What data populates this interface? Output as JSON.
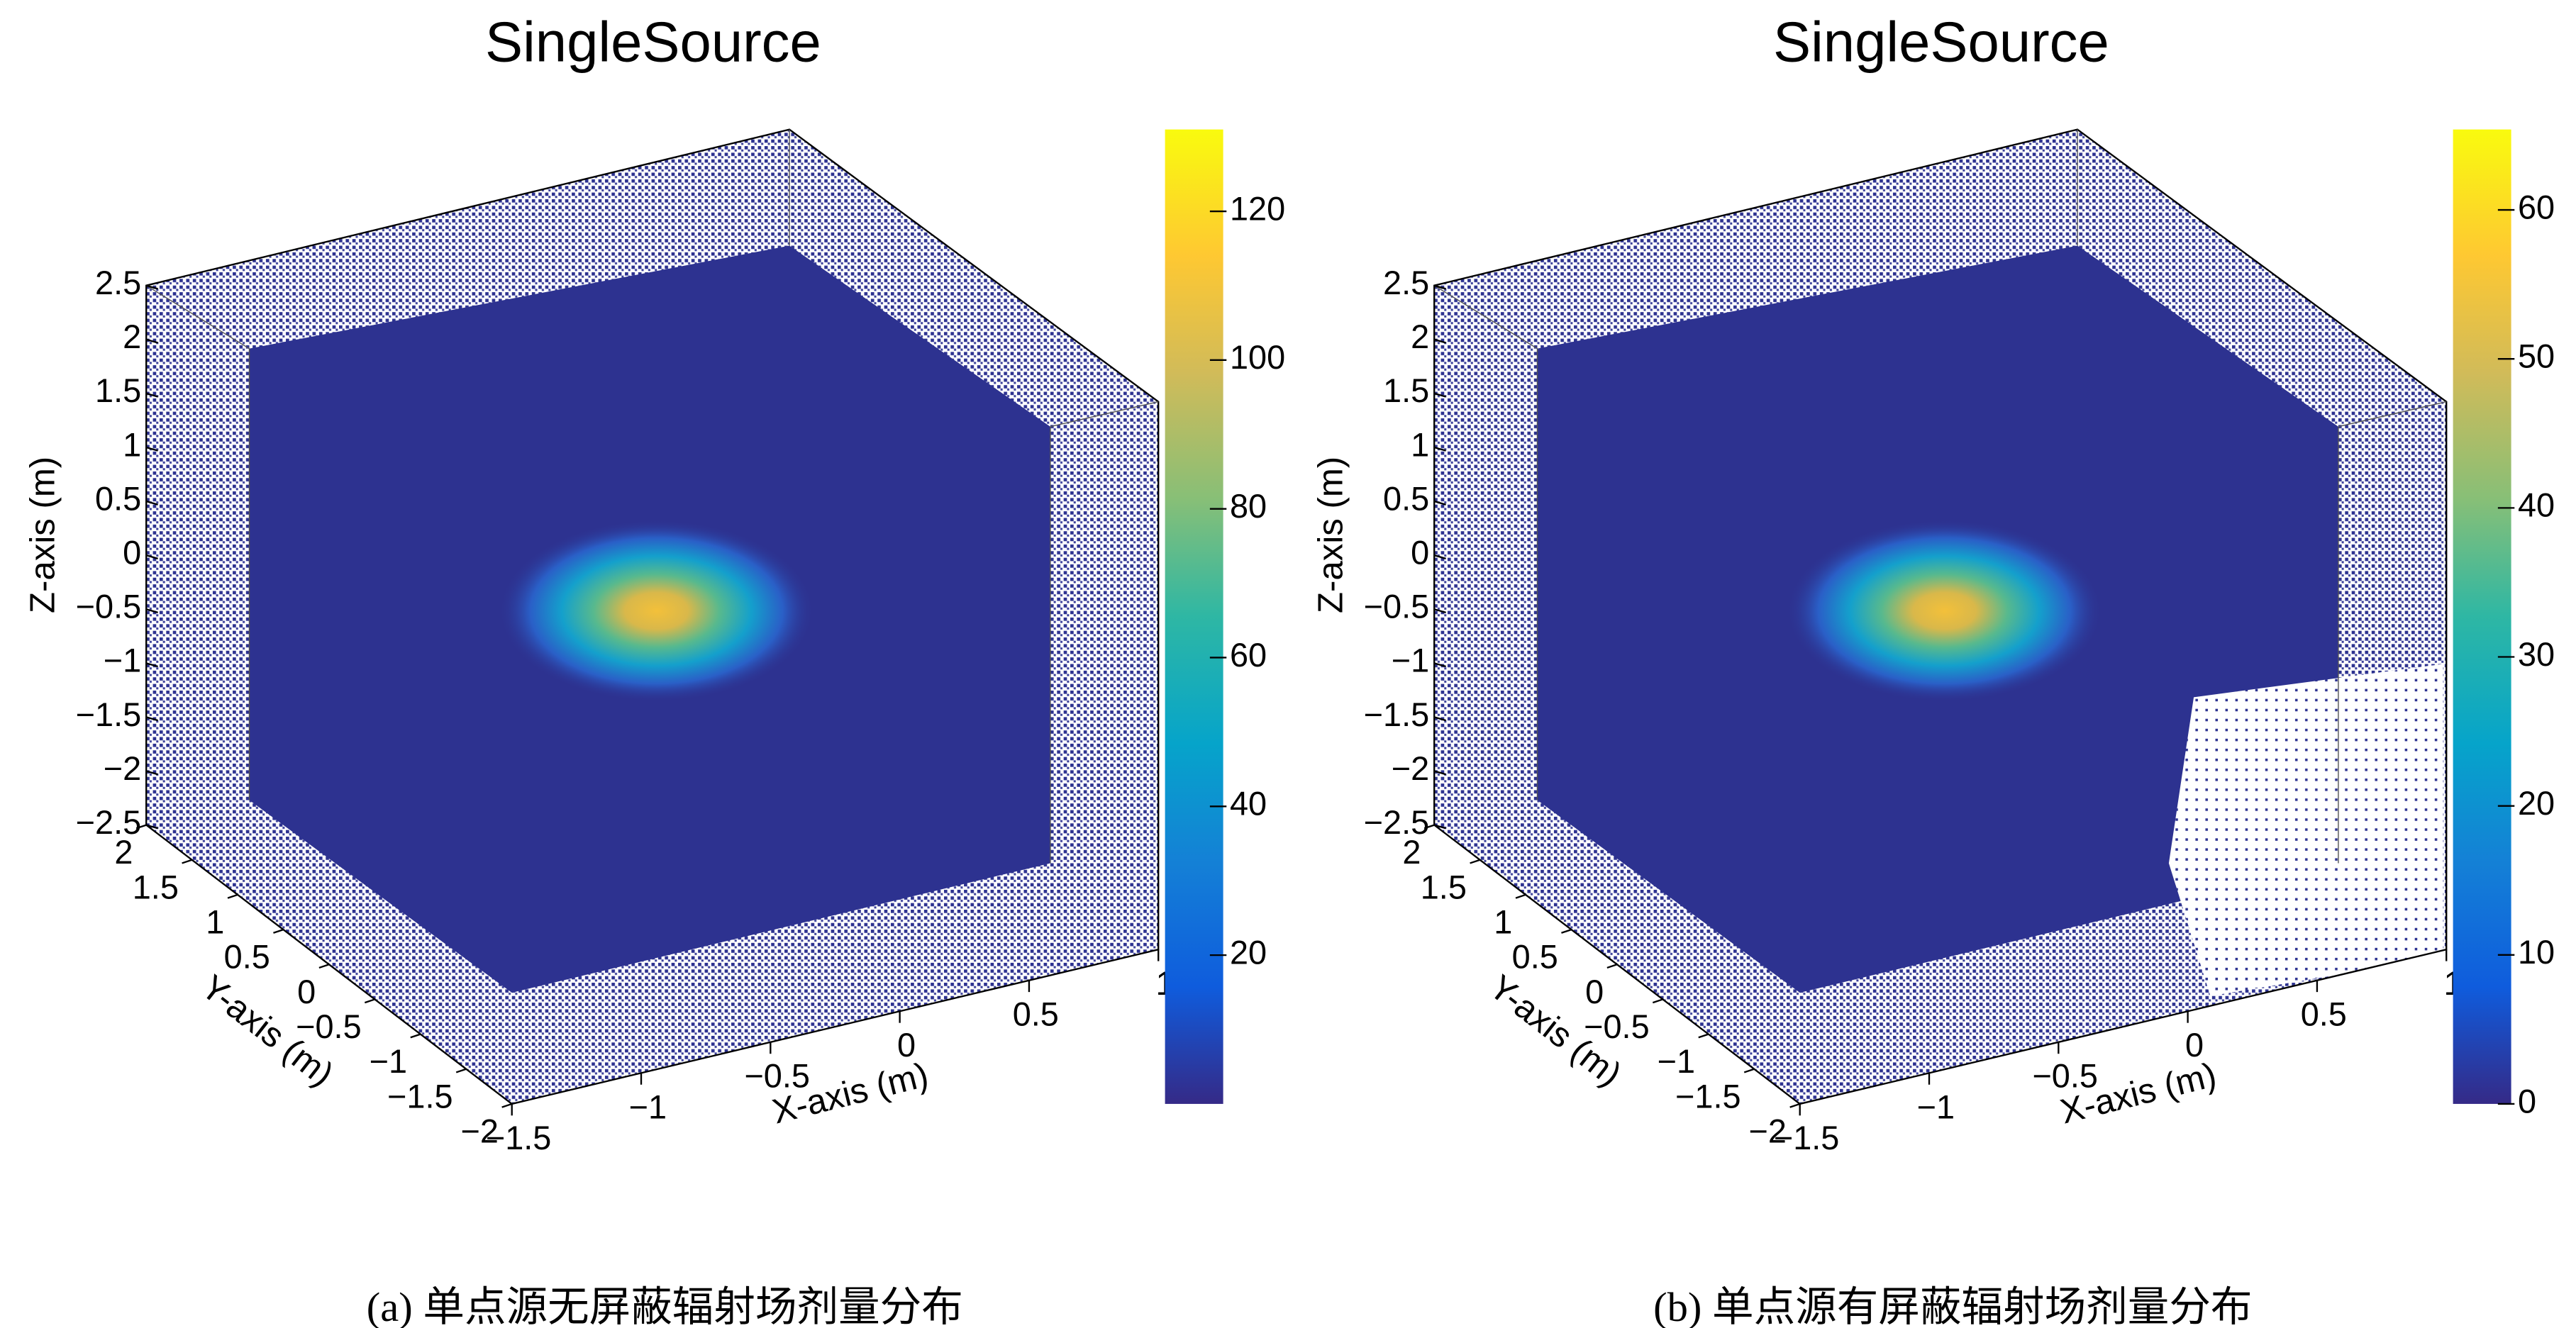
{
  "chart_data": [
    {
      "type": "lego3d",
      "title": "SingleSource",
      "xlabel": "X-axis (m)",
      "ylabel": "Y-axis (m)",
      "zlabel": "Z-axis (m)",
      "xlim": [
        -1.5,
        1
      ],
      "ylim": [
        -2,
        2
      ],
      "zlim": [
        -2.5,
        2.5
      ],
      "xticks": [
        {
          "value": -1.5,
          "label": "−1.5"
        },
        {
          "value": -1,
          "label": "−1"
        },
        {
          "value": -0.5,
          "label": "−0.5"
        },
        0,
        0.5,
        1
      ],
      "yticks": [
        2,
        1.5,
        1,
        0.5,
        0,
        {
          "value": -0.5,
          "label": "−0.5"
        },
        {
          "value": -1,
          "label": "−1"
        },
        {
          "value": -1.5,
          "label": "−1.5"
        },
        {
          "value": -2,
          "label": "−2"
        }
      ],
      "zticks": [
        2.5,
        2,
        1.5,
        1,
        0.5,
        0,
        {
          "value": -0.5,
          "label": "−0.5"
        },
        {
          "value": -1,
          "label": "−1"
        },
        {
          "value": -1.5,
          "label": "−1.5"
        },
        {
          "value": -2,
          "label": "−2"
        },
        {
          "value": -2.5,
          "label": "−2.5"
        }
      ],
      "colorbar_lim": [
        0,
        131
      ],
      "colorbar_ticks": [
        20,
        40,
        60,
        80,
        100,
        120
      ],
      "shielded": false,
      "caption": "(a) 单点源无屏蔽辐射场剂量分布"
    },
    {
      "type": "lego3d",
      "title": "SingleSource",
      "xlabel": "X-axis (m)",
      "ylabel": "Y-axis (m)",
      "zlabel": "Z-axis (m)",
      "xlim": [
        -1.5,
        1
      ],
      "ylim": [
        -2,
        2
      ],
      "zlim": [
        -2.5,
        2.5
      ],
      "xticks": [
        {
          "value": -1.5,
          "label": "−1.5"
        },
        {
          "value": -1,
          "label": "−1"
        },
        {
          "value": -0.5,
          "label": "−0.5"
        },
        0,
        0.5,
        1
      ],
      "yticks": [
        2,
        1.5,
        1,
        0.5,
        0,
        {
          "value": -0.5,
          "label": "−0.5"
        },
        {
          "value": -1,
          "label": "−1"
        },
        {
          "value": -1.5,
          "label": "−1.5"
        },
        {
          "value": -2,
          "label": "−2"
        }
      ],
      "zticks": [
        2.5,
        2,
        1.5,
        1,
        0.5,
        0,
        {
          "value": -0.5,
          "label": "−0.5"
        },
        {
          "value": -1,
          "label": "−1"
        },
        {
          "value": -1.5,
          "label": "−1.5"
        },
        {
          "value": -2,
          "label": "−2"
        },
        {
          "value": -2.5,
          "label": "−2.5"
        }
      ],
      "colorbar_lim": [
        0,
        65.4
      ],
      "colorbar_ticks": [
        0,
        10,
        20,
        30,
        40,
        50,
        60
      ],
      "shielded": true,
      "caption": "(b) 单点源有屏蔽辐射场剂量分布"
    }
  ]
}
